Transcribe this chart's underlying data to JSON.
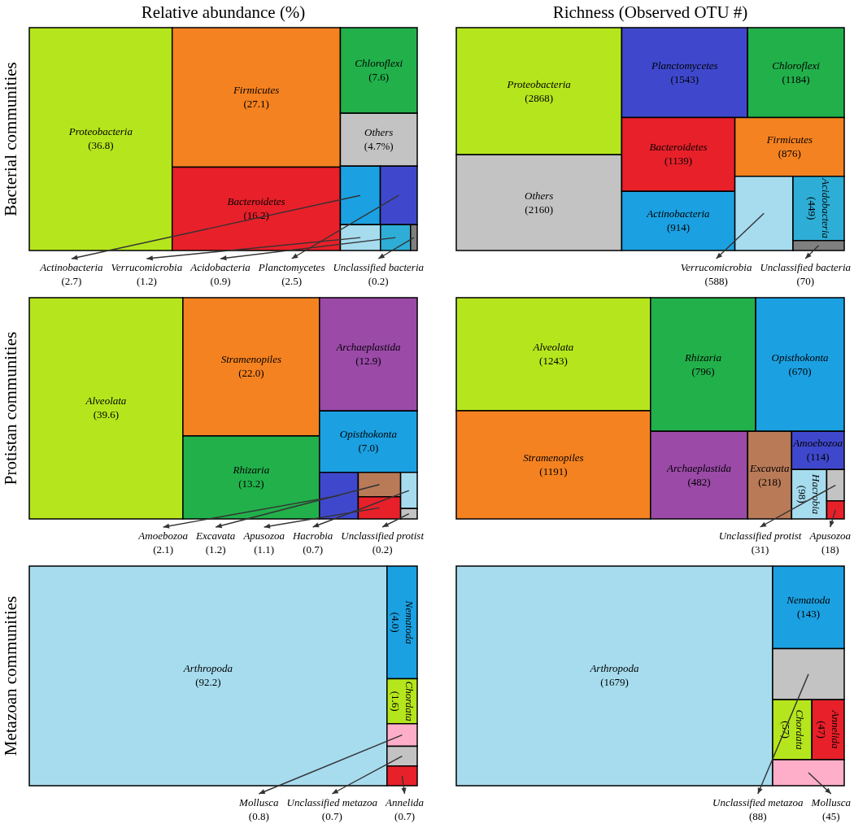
{
  "chart_data": [
    {
      "type": "other",
      "title": "Relative abundance (%)",
      "ylabel": "Bacterial communities",
      "categories": [
        "Proteobacteria",
        "Firmicutes",
        "Bacteroidetes",
        "Chloroflexi",
        "Others",
        "Actinobacteria",
        "Planctomycetes",
        "Verrucomicrobia",
        "Acidobacteria",
        "Unclassified bacteria"
      ],
      "values": [
        36.8,
        27.1,
        16.2,
        7.6,
        4.7,
        2.7,
        2.5,
        1.2,
        0.9,
        0.2
      ],
      "value_labels": [
        "(36.8)",
        "(27.1)",
        "(16.2)",
        "(7.6)",
        "(4.7%)",
        "(2.7)",
        "(2.5)",
        "(1.2)",
        "(0.9)",
        "(0.2)"
      ],
      "colors": [
        "#b5e61d",
        "#f58220",
        "#e8202a",
        "#22b04b",
        "#c3c3c3",
        "#1ba1e2",
        "#3f48cc",
        "#a6dcee",
        "#2eaed6",
        "#7f7f7f"
      ]
    },
    {
      "type": "other",
      "title": "Richness (Observed OTU #)",
      "categories": [
        "Proteobacteria",
        "Others",
        "Planctomycetes",
        "Chloroflexi",
        "Bacteroidetes",
        "Actinobacteria",
        "Firmicutes",
        "Verrucomicrobia",
        "Acidobacteria",
        "Unclassified bacteria"
      ],
      "values": [
        2868,
        2160,
        1543,
        1184,
        1139,
        914,
        876,
        588,
        449,
        70
      ],
      "value_labels": [
        "(2868)",
        "(2160)",
        "(1543)",
        "(1184)",
        "(1139)",
        "(914)",
        "(876)",
        "(588)",
        "(449)",
        "(70)"
      ],
      "colors": [
        "#b5e61d",
        "#c3c3c3",
        "#3f48cc",
        "#22b04b",
        "#e8202a",
        "#1ba1e2",
        "#f58220",
        "#a6dcee",
        "#2eaed6",
        "#7f7f7f"
      ]
    },
    {
      "type": "other",
      "ylabel": "Protistan communities",
      "categories": [
        "Alveolata",
        "Stramenopiles",
        "Rhizaria",
        "Archaeplastida",
        "Opisthokonta",
        "Amoebozoa",
        "Excavata",
        "Apusozoa",
        "Hacrobia",
        "Unclassified protist"
      ],
      "values": [
        39.6,
        22.0,
        13.2,
        12.9,
        7.0,
        2.1,
        1.2,
        1.1,
        0.7,
        0.2
      ],
      "value_labels": [
        "(39.6)",
        "(22.0)",
        "(13.2)",
        "(12.9)",
        "(7.0)",
        "(2.1)",
        "(1.2)",
        "(1.1)",
        "(0.7)",
        "(0.2)"
      ],
      "colors": [
        "#b5e61d",
        "#f58220",
        "#22b04b",
        "#9b4aa8",
        "#1ba1e2",
        "#3f48cc",
        "#b97a57",
        "#e8202a",
        "#a6dcee",
        "#c3c3c3"
      ]
    },
    {
      "type": "other",
      "categories": [
        "Alveolata",
        "Stramenopiles",
        "Rhizaria",
        "Opisthokonta",
        "Archaeplastida",
        "Excavata",
        "Amoebozoa",
        "Hacrobia",
        "Unclassified protist",
        "Apusozoa"
      ],
      "values": [
        1243,
        1191,
        796,
        670,
        482,
        218,
        114,
        98,
        31,
        18
      ],
      "value_labels": [
        "(1243)",
        "(1191)",
        "(796)",
        "(670)",
        "(482)",
        "(218)",
        "(114)",
        "(98)",
        "(31)",
        "(18)"
      ],
      "colors": [
        "#b5e61d",
        "#f58220",
        "#22b04b",
        "#1ba1e2",
        "#9b4aa8",
        "#b97a57",
        "#3f48cc",
        "#a6dcee",
        "#c3c3c3",
        "#e8202a"
      ]
    },
    {
      "type": "other",
      "ylabel": "Metazoan communities",
      "categories": [
        "Arthropoda",
        "Nematoda",
        "Chordata",
        "Mollusca",
        "Unclassified metazoa",
        "Annelida"
      ],
      "values": [
        92.2,
        4.0,
        1.6,
        0.8,
        0.7,
        0.7
      ],
      "value_labels": [
        "(92.2)",
        "(4.0)",
        "(1.6)",
        "(0.8)",
        "(0.7)",
        "(0.7)"
      ],
      "colors": [
        "#a6dcee",
        "#1ba1e2",
        "#b5e61d",
        "#ffaec9",
        "#c3c3c3",
        "#e8202a"
      ]
    },
    {
      "type": "other",
      "categories": [
        "Arthropoda",
        "Nematoda",
        "Unclassified metazoa",
        "Chordata",
        "Annelida",
        "Mollusca"
      ],
      "values": [
        1679,
        143,
        88,
        57,
        47,
        45
      ],
      "value_labels": [
        "(1679)",
        "(143)",
        "(88)",
        "(57)",
        "(47)",
        "(45)"
      ],
      "colors": [
        "#a6dcee",
        "#1ba1e2",
        "#c3c3c3",
        "#b5e61d",
        "#e8202a",
        "#ffaec9"
      ]
    }
  ]
}
